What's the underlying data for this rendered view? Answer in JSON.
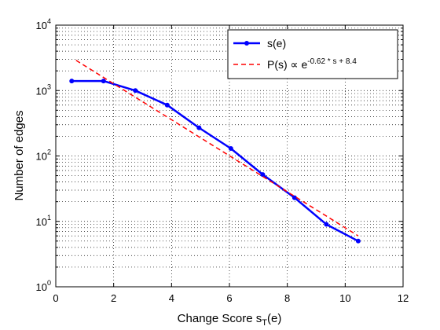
{
  "chart_data": {
    "type": "line",
    "xlabel": "Change Score s",
    "xlabel_sub": "T",
    "xlabel_tail": "(e)",
    "ylabel": "Number of edges",
    "xlim": [
      0,
      12
    ],
    "ylim": [
      1,
      10000
    ],
    "yscale": "log",
    "grid": true,
    "legend_position": "top-right",
    "x_ticks": [
      "0",
      "2",
      "4",
      "6",
      "8",
      "10",
      "12"
    ],
    "y_ticks": [
      {
        "base": "10",
        "exp": "0",
        "value": 1
      },
      {
        "base": "10",
        "exp": "1",
        "value": 10
      },
      {
        "base": "10",
        "exp": "2",
        "value": 100
      },
      {
        "base": "10",
        "exp": "3",
        "value": 1000
      },
      {
        "base": "10",
        "exp": "4",
        "value": 10000
      }
    ],
    "series": [
      {
        "name": "s(e)",
        "style": "line-marker",
        "color": "#0000ff",
        "x": [
          0.55,
          1.65,
          2.75,
          3.85,
          4.95,
          6.05,
          7.15,
          8.25,
          9.35,
          10.45
        ],
        "y": [
          1400,
          1400,
          1000,
          600,
          270,
          130,
          52,
          23,
          9,
          5
        ]
      },
      {
        "name": "P(s) ∝ e",
        "name_sup": "-0.62 * s + 8.4",
        "style": "dashed",
        "color": "#ff0000",
        "x": [
          0.7,
          10.45
        ],
        "y": [
          2900,
          6
        ]
      }
    ]
  }
}
